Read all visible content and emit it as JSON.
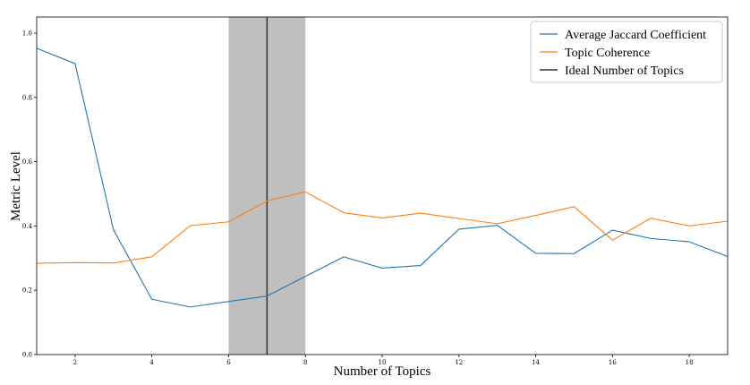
{
  "chart_data": {
    "type": "line",
    "xlabel": "Number of Topics",
    "ylabel": "Metric Level",
    "xlim": [
      1,
      19
    ],
    "ylim": [
      0.0,
      1.05
    ],
    "xticks": [
      2,
      4,
      6,
      8,
      10,
      12,
      14,
      16,
      18
    ],
    "yticks": [
      0.0,
      0.2,
      0.4,
      0.6,
      0.8,
      1.0
    ],
    "xtick_labels": [
      "2",
      "4",
      "6",
      "8",
      "10",
      "12",
      "14",
      "16",
      "18"
    ],
    "ytick_labels": [
      "0.0",
      "0.2",
      "0.4",
      "0.6",
      "0.8",
      "1.0"
    ],
    "grid": false,
    "legend_position": "top-right",
    "x": [
      1,
      2,
      3,
      4,
      5,
      6,
      7,
      8,
      9,
      10,
      11,
      12,
      13,
      14,
      15,
      16,
      17,
      18,
      19
    ],
    "series": [
      {
        "name": "Average Jaccard Coefficient",
        "color": "#1f77b4",
        "values": [
          0.953,
          0.905,
          0.388,
          0.172,
          0.148,
          0.165,
          0.182,
          0.243,
          0.304,
          0.269,
          0.277,
          0.39,
          0.402,
          0.315,
          0.314,
          0.387,
          0.361,
          0.351,
          0.305
        ]
      },
      {
        "name": "Topic Coherence",
        "color": "#ff7f0e",
        "values": [
          0.284,
          0.286,
          0.285,
          0.304,
          0.401,
          0.413,
          0.478,
          0.506,
          0.441,
          0.425,
          0.44,
          0.423,
          0.407,
          0.433,
          0.46,
          0.356,
          0.424,
          0.4,
          0.415
        ]
      }
    ],
    "ideal_line": {
      "name": "Ideal Number of Topics",
      "x": 7,
      "color": "#333333"
    },
    "shaded_band": {
      "x_range": [
        6,
        8
      ],
      "color": "#bfbfbf"
    }
  }
}
